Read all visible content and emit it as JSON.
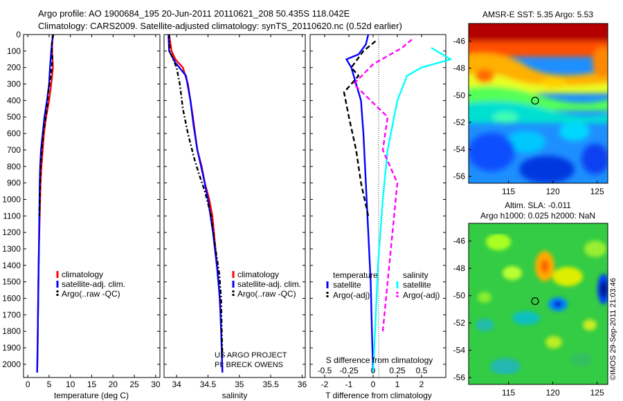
{
  "header": {
    "line1": "Argo profile: AO 1900684_195 20-Jun-2011 20110621_208 50.435S 118.042E",
    "line2": "Climatology: CARS2009. Satellite-adjusted climatology: synTS_20110620.nc (0.52d earlier)"
  },
  "colors": {
    "climatology": "#ff0000",
    "satellite": "#0000ff",
    "argo": "#000000",
    "satellite_salinity": "#00ffff",
    "argo_salinity": "#ff00ff"
  },
  "chart_data": [
    {
      "id": "temperature",
      "type": "line",
      "xlabel": "temperature (deg C)",
      "ylabel": "",
      "xlim": [
        -1,
        31
      ],
      "ylim": [
        2080,
        0
      ],
      "xticks": [
        0,
        5,
        10,
        15,
        20,
        25,
        30
      ],
      "yticks": [
        0,
        100,
        200,
        300,
        400,
        500,
        600,
        700,
        800,
        900,
        1000,
        1100,
        1200,
        1300,
        1400,
        1500,
        1600,
        1700,
        1800,
        1900,
        2000
      ],
      "legend": {
        "position": "lower-right",
        "entries": [
          "climatology",
          "satellite-adj. clim.",
          "Argo(..raw -QC)"
        ]
      },
      "series": [
        {
          "name": "climatology",
          "color": "#ff0000",
          "dash": "",
          "points": [
            [
              5.8,
              0
            ],
            [
              5.7,
              100
            ],
            [
              5.9,
              200
            ],
            [
              5.5,
              300
            ],
            [
              5.0,
              400
            ],
            [
              4.3,
              500
            ],
            [
              3.8,
              600
            ],
            [
              3.5,
              700
            ],
            [
              3.2,
              800
            ],
            [
              3.0,
              900
            ],
            [
              2.8,
              1100
            ],
            [
              2.6,
              1300
            ],
            [
              2.5,
              1500
            ],
            [
              2.4,
              1700
            ],
            [
              2.3,
              1900
            ],
            [
              2.2,
              2050
            ]
          ]
        },
        {
          "name": "satellite-adj. clim.",
          "color": "#0000ff",
          "dash": "",
          "points": [
            [
              5.9,
              0
            ],
            [
              5.5,
              100
            ],
            [
              5.2,
              200
            ],
            [
              5.0,
              300
            ],
            [
              4.5,
              400
            ],
            [
              3.9,
              500
            ],
            [
              3.5,
              600
            ],
            [
              3.1,
              700
            ],
            [
              2.9,
              800
            ],
            [
              2.8,
              900
            ],
            [
              2.7,
              1100
            ],
            [
              2.6,
              1300
            ],
            [
              2.5,
              1500
            ],
            [
              2.4,
              1700
            ],
            [
              2.3,
              1900
            ],
            [
              2.2,
              2050
            ]
          ]
        },
        {
          "name": "Argo(..raw -QC)",
          "color": "#000000",
          "dash": "6,4",
          "points": [
            [
              6.0,
              0
            ],
            [
              5.6,
              60
            ],
            [
              5.8,
              150
            ],
            [
              5.4,
              250
            ],
            [
              4.8,
              350
            ],
            [
              4.6,
              420
            ],
            [
              4.2,
              500
            ],
            [
              3.6,
              600
            ],
            [
              3.3,
              700
            ],
            [
              3.0,
              800
            ],
            [
              2.9,
              900
            ],
            [
              2.7,
              1100
            ]
          ]
        }
      ]
    },
    {
      "id": "salinity",
      "type": "line",
      "xlabel": "salinity",
      "ylabel": "",
      "xlim": [
        33.8,
        36.05
      ],
      "ylim": [
        2080,
        0
      ],
      "xticks": [
        34,
        34.5,
        35,
        35.5,
        36
      ],
      "xticklabels": [
        "34",
        "34.5",
        "35",
        "35.5",
        "36"
      ],
      "legend": {
        "position": "lower-right",
        "entries": [
          "climatology",
          "satellite-adj. clim.",
          "Argo(..raw -QC)"
        ]
      },
      "annotation": [
        "US ARGO PROJECT",
        "PI: BRECK OWENS"
      ],
      "series": [
        {
          "name": "climatology",
          "color": "#ff0000",
          "dash": "",
          "points": [
            [
              33.88,
              0
            ],
            [
              33.92,
              100
            ],
            [
              33.98,
              150
            ],
            [
              34.1,
              200
            ],
            [
              34.18,
              300
            ],
            [
              34.26,
              500
            ],
            [
              34.33,
              700
            ],
            [
              34.4,
              800
            ],
            [
              34.45,
              900
            ],
            [
              34.52,
              1000
            ],
            [
              34.57,
              1100
            ],
            [
              34.62,
              1300
            ],
            [
              34.67,
              1500
            ],
            [
              34.7,
              1700
            ],
            [
              34.72,
              1900
            ],
            [
              34.73,
              2050
            ]
          ]
        },
        {
          "name": "satellite-adj. clim.",
          "color": "#0000ff",
          "dash": "",
          "points": [
            [
              33.87,
              0
            ],
            [
              33.88,
              100
            ],
            [
              33.98,
              170
            ],
            [
              34.15,
              250
            ],
            [
              34.22,
              400
            ],
            [
              34.27,
              550
            ],
            [
              34.33,
              700
            ],
            [
              34.42,
              850
            ],
            [
              34.5,
              1000
            ],
            [
              34.58,
              1200
            ],
            [
              34.64,
              1400
            ],
            [
              34.69,
              1600
            ],
            [
              34.71,
              1800
            ],
            [
              34.73,
              2050
            ]
          ]
        },
        {
          "name": "Argo(..raw -QC)",
          "color": "#000000",
          "dash": "6,3,2,3",
          "points": [
            [
              33.88,
              0
            ],
            [
              33.89,
              100
            ],
            [
              34.0,
              200
            ],
            [
              34.05,
              300
            ],
            [
              34.1,
              450
            ],
            [
              34.18,
              600
            ],
            [
              34.28,
              750
            ],
            [
              34.36,
              850
            ],
            [
              34.45,
              950
            ],
            [
              34.55,
              1100
            ],
            [
              34.62,
              1300
            ],
            [
              34.68,
              1450
            ],
            [
              34.71,
              1600
            ],
            [
              34.72,
              1800
            ],
            [
              34.73,
              1950
            ]
          ]
        }
      ]
    },
    {
      "id": "difference",
      "type": "line",
      "xlabel": "T difference from climatology",
      "x2label": "S difference from climatology",
      "xlim": [
        -2.6,
        3.0
      ],
      "x2lim": [
        -0.65,
        0.75
      ],
      "ylim": [
        2080,
        0
      ],
      "xticks": [
        -2,
        -1,
        0,
        1,
        2
      ],
      "x2ticks": [
        -0.5,
        -0.25,
        0,
        0.25,
        0.5
      ],
      "x2ticklabels": [
        "-0.5",
        "-0.25",
        "0",
        "0.25",
        "0.5"
      ],
      "legend": {
        "position": "lower-center",
        "headers": [
          "temperature",
          "salinity"
        ],
        "entries": [
          "satellite",
          "Argo(-adj)",
          "satellite",
          "Argo(-adj)"
        ]
      },
      "series": [
        {
          "name": "satellite",
          "group": "temperature",
          "color": "#0000ff",
          "dash": "",
          "points": [
            [
              -0.2,
              0
            ],
            [
              -0.3,
              60
            ],
            [
              -0.6,
              120
            ],
            [
              -1.1,
              150
            ],
            [
              -0.9,
              200
            ],
            [
              -0.7,
              300
            ],
            [
              -0.5,
              400
            ],
            [
              -0.4,
              600
            ],
            [
              -0.3,
              900
            ],
            [
              -0.2,
              1200
            ],
            [
              -0.1,
              1500
            ],
            [
              -0.05,
              1800
            ],
            [
              0,
              2050
            ]
          ]
        },
        {
          "name": "Argo(-adj)",
          "group": "temperature",
          "color": "#000000",
          "dash": "7,4",
          "points": [
            [
              0.1,
              40
            ],
            [
              -0.4,
              100
            ],
            [
              -0.9,
              200
            ],
            [
              -0.6,
              250
            ],
            [
              -1.2,
              350
            ],
            [
              -1.0,
              500
            ],
            [
              -0.7,
              700
            ],
            [
              -0.5,
              900
            ],
            [
              -0.2,
              1100
            ]
          ]
        },
        {
          "name": "satellite",
          "group": "salinity",
          "color": "#00ffff",
          "dash": "",
          "points": [
            [
              0.6,
              80
            ],
            [
              0.8,
              150
            ],
            [
              0.5,
              200
            ],
            [
              0.35,
              250
            ],
            [
              0.25,
              400
            ],
            [
              0.15,
              700
            ],
            [
              0.1,
              1000
            ],
            [
              0.05,
              1400
            ],
            [
              0.02,
              1800
            ],
            [
              0,
              2050
            ]
          ]
        },
        {
          "name": "Argo(-adj)",
          "group": "salinity",
          "color": "#ff00ff",
          "dash": "7,4",
          "points": [
            [
              0.4,
              30
            ],
            [
              0.3,
              80
            ],
            [
              0.0,
              180
            ],
            [
              -0.2,
              300
            ],
            [
              0.15,
              500
            ],
            [
              0.1,
              700
            ],
            [
              0.25,
              900
            ],
            [
              0.2,
              1200
            ],
            [
              0.15,
              1500
            ],
            [
              0.1,
              1800
            ]
          ]
        }
      ]
    }
  ],
  "maps": {
    "sst": {
      "title": "AMSR-E SST: 5.35 Argo: 5.53",
      "xticks": [
        115,
        120,
        125
      ],
      "yticks": [
        -46,
        -48,
        -50,
        -52,
        -54,
        -56
      ],
      "xlim": [
        110.5,
        126.2
      ],
      "ylim": [
        -56.5,
        -44.7
      ],
      "marker": [
        118.0,
        -50.4
      ]
    },
    "sla": {
      "title1": "Altim. SLA: -0.011",
      "title2": "Argo h1000: 0.025 h2000: NaN",
      "xticks": [
        115,
        120,
        125
      ],
      "yticks": [
        -46,
        -48,
        -50,
        -52,
        -54,
        -56
      ],
      "xlim": [
        110.5,
        126.2
      ],
      "ylim": [
        -56.5,
        -44.7
      ],
      "marker": [
        118.0,
        -50.4
      ]
    }
  },
  "watermark": "©IMOS 29-Sep-2011 21:03:46"
}
